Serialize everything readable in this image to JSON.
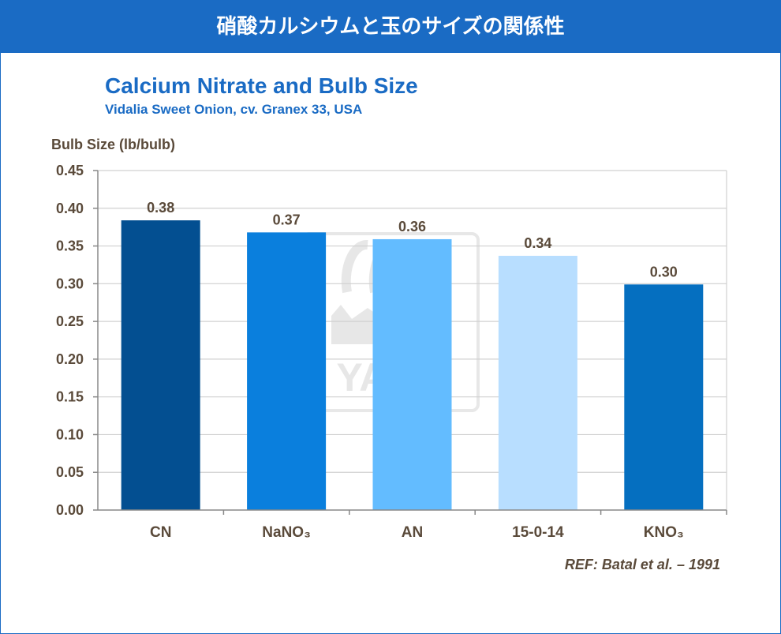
{
  "banner": {
    "title": "硝酸カルシウムと玉のサイズの関係性"
  },
  "watermark": {
    "text": "YARA"
  },
  "reference": "REF: Batal et al. – 1991",
  "colors": {
    "brand": "#1a6bc4",
    "text": "#5a4a3a",
    "grid": "#d0d0d0"
  },
  "chart_data": {
    "type": "bar",
    "title": "Calcium Nitrate and Bulb Size",
    "subtitle": "Vidalia  Sweet  Onion,  cv.  Granex  33,  USA",
    "ylabel": "Bulb Size (lb/bulb)",
    "xlabel": "",
    "categories": [
      "CN",
      "NaNO₃",
      "AN",
      "15-0-14",
      "KNO₃"
    ],
    "values": [
      0.384,
      0.368,
      0.359,
      0.337,
      0.299
    ],
    "data_labels": [
      "0.38",
      "0.37",
      "0.36",
      "0.34",
      "0.30"
    ],
    "bar_colors": [
      "#034f91",
      "#0a7fdd",
      "#63bcff",
      "#b8deff",
      "#056fc0"
    ],
    "ylim": [
      0,
      0.45
    ],
    "yticks": [
      "0.00",
      "0.05",
      "0.10",
      "0.15",
      "0.20",
      "0.25",
      "0.30",
      "0.35",
      "0.40",
      "0.45"
    ],
    "grid": true,
    "legend": "none"
  }
}
